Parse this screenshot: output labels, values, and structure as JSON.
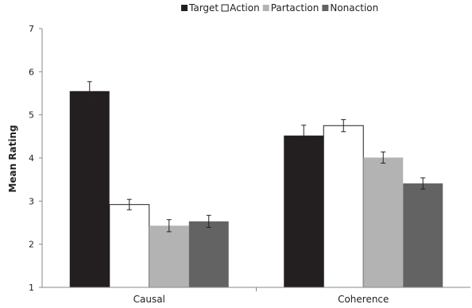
{
  "chart_data": {
    "type": "bar",
    "categories": [
      "Causal",
      "Coherence"
    ],
    "series": [
      {
        "name": "Target",
        "values": [
          5.55,
          4.52
        ],
        "errors": [
          0.22,
          0.24
        ],
        "color": "#231f20"
      },
      {
        "name": "Action",
        "values": [
          2.92,
          4.75
        ],
        "errors": [
          0.12,
          0.14
        ],
        "color": "#ffffff"
      },
      {
        "name": "Partaction",
        "values": [
          2.43,
          4.01
        ],
        "errors": [
          0.14,
          0.13
        ],
        "color": "#b3b3b3"
      },
      {
        "name": "Nonaction",
        "values": [
          2.53,
          3.41
        ],
        "errors": [
          0.14,
          0.13
        ],
        "color": "#636363"
      }
    ],
    "ylabel": "Mean Rating",
    "ylim": [
      1,
      7
    ],
    "yticks": [
      "1",
      "2",
      "3",
      "4",
      "5",
      "6",
      "7"
    ],
    "grid": false,
    "legend_position": "top"
  }
}
